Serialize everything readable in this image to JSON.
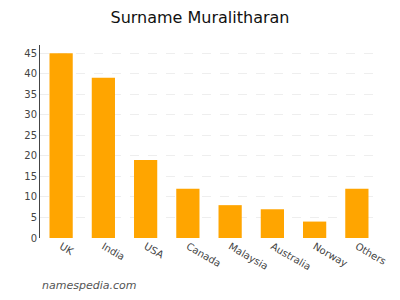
{
  "chart_data": {
    "type": "bar",
    "title": "Surname Muralitharan",
    "categories": [
      "UK",
      "India",
      "USA",
      "Canada",
      "Malaysia",
      "Australia",
      "Norway",
      "Others"
    ],
    "values": [
      45,
      39,
      19,
      12,
      8,
      7,
      4,
      12
    ],
    "color": "#FFA500",
    "ylim": [
      0,
      47
    ],
    "yticks": [
      0,
      5,
      10,
      15,
      20,
      25,
      30,
      35,
      40,
      45
    ],
    "grid": true,
    "annotations": [
      "namespedia.com"
    ]
  }
}
